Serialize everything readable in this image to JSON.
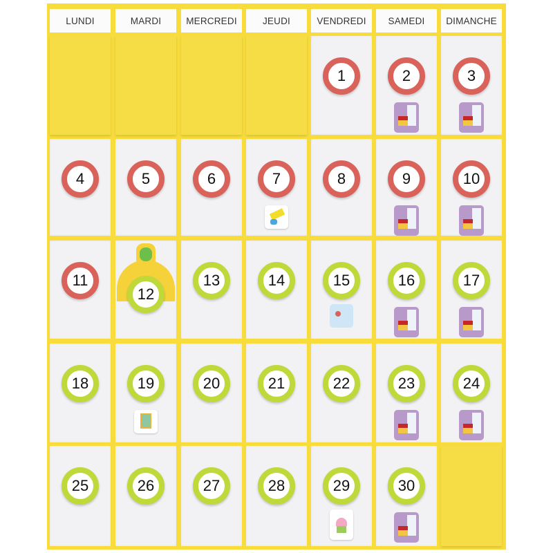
{
  "colors": {
    "board": "#f7dc3c",
    "past_ring": "#d9625a",
    "future_ring": "#bfd83a"
  },
  "days": [
    "LUNDI",
    "MARDI",
    "MERCREDI",
    "JEUDI",
    "VENDREDI",
    "SAMEDI",
    "DIMANCHE"
  ],
  "leading_blank": 4,
  "dates": [
    {
      "n": "1",
      "ring": "red"
    },
    {
      "n": "2",
      "ring": "red",
      "sticker": "house"
    },
    {
      "n": "3",
      "ring": "red",
      "sticker": "house"
    },
    {
      "n": "4",
      "ring": "red"
    },
    {
      "n": "5",
      "ring": "red"
    },
    {
      "n": "6",
      "ring": "red"
    },
    {
      "n": "7",
      "ring": "red",
      "sticker": "paint"
    },
    {
      "n": "8",
      "ring": "red"
    },
    {
      "n": "9",
      "ring": "red",
      "sticker": "house"
    },
    {
      "n": "10",
      "ring": "red",
      "sticker": "house"
    },
    {
      "n": "11",
      "ring": "red"
    },
    {
      "n": "12",
      "ring": "green",
      "marker": "frog"
    },
    {
      "n": "13",
      "ring": "green"
    },
    {
      "n": "14",
      "ring": "green"
    },
    {
      "n": "15",
      "ring": "green",
      "sticker": "med"
    },
    {
      "n": "16",
      "ring": "green",
      "sticker": "house"
    },
    {
      "n": "17",
      "ring": "green",
      "sticker": "house"
    },
    {
      "n": "18",
      "ring": "green"
    },
    {
      "n": "19",
      "ring": "green",
      "sticker": "pic"
    },
    {
      "n": "20",
      "ring": "green"
    },
    {
      "n": "21",
      "ring": "green"
    },
    {
      "n": "22",
      "ring": "green"
    },
    {
      "n": "23",
      "ring": "green",
      "sticker": "house"
    },
    {
      "n": "24",
      "ring": "green",
      "sticker": "house"
    },
    {
      "n": "25",
      "ring": "green"
    },
    {
      "n": "26",
      "ring": "green"
    },
    {
      "n": "27",
      "ring": "green"
    },
    {
      "n": "28",
      "ring": "green"
    },
    {
      "n": "29",
      "ring": "green",
      "sticker": "cake"
    },
    {
      "n": "30",
      "ring": "green",
      "sticker": "house"
    }
  ]
}
